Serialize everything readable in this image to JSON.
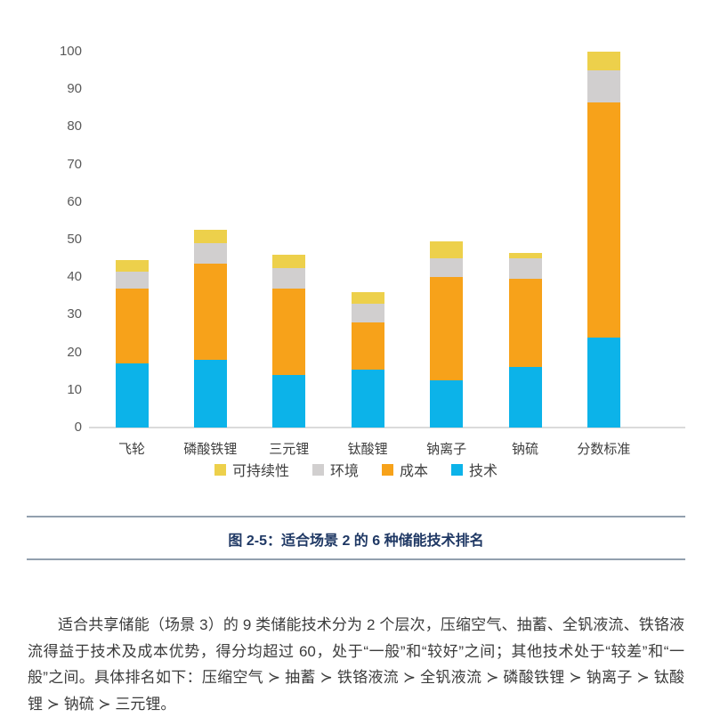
{
  "chart_data": {
    "type": "bar",
    "stacked": true,
    "title": "",
    "xlabel": "",
    "ylabel": "",
    "categories": [
      "飞轮",
      "磷酸铁锂",
      "三元锂",
      "钛酸锂",
      "钠离子",
      "钠硫",
      "分数标准"
    ],
    "series": [
      {
        "name": "技术",
        "color": "#0CB3E9",
        "values": [
          17,
          18,
          14,
          15.5,
          12.5,
          16,
          24
        ]
      },
      {
        "name": "成本",
        "color": "#F7A21A",
        "values": [
          20,
          25.5,
          23,
          12.5,
          27.5,
          23.5,
          62.5
        ]
      },
      {
        "name": "环境",
        "color": "#D1CFCF",
        "values": [
          4.5,
          5.5,
          5.5,
          5,
          5,
          5.5,
          8.5
        ]
      },
      {
        "name": "可持续性",
        "color": "#EDD04B",
        "values": [
          3,
          3.5,
          3.5,
          3,
          4.5,
          1.5,
          5
        ]
      }
    ],
    "totals": [
      44.5,
      52.5,
      46,
      36,
      49.5,
      46.5,
      100
    ],
    "ylim": [
      0,
      100
    ],
    "y_ticks": [
      0,
      10,
      20,
      30,
      40,
      50,
      60,
      70,
      80,
      90,
      100
    ],
    "legend": [
      "可持续性",
      "环境",
      "成本",
      "技术"
    ],
    "legend_position": "bottom",
    "grid": false
  },
  "figure": {
    "caption": "图 2-5：适合场景 2 的 6 种储能技术排名"
  },
  "body": {
    "paragraph": "适合共享储能（场景 3）的 9 类储能技术分为 2 个层次，压缩空气、抽蓄、全钒液流、铁铬液流得益于技术及成本优势，得分均超过 60，处于“一般”和“较好”之间；其他技术处于“较差”和“一般”之间。具体排名如下：压缩空气 ≻ 抽蓄 ≻ 铁铬液流 ≻ 全钒液流 ≻ 磷酸铁锂 ≻ 钠离子 ≻ 钛酸锂 ≻ 钠硫 ≻ 三元锂。"
  },
  "colors": {
    "tech_blue": "#0CB3E9",
    "cost_orange": "#F7A21A",
    "env_gray": "#D1CFCF",
    "sustain_yellow": "#EDD04B",
    "caption_navy": "#1F3864",
    "divider_gray_blue": "#92A0AE",
    "axis_line": "#dbdbdb",
    "axis_text": "#595959",
    "body_text": "#3c3c3c"
  }
}
